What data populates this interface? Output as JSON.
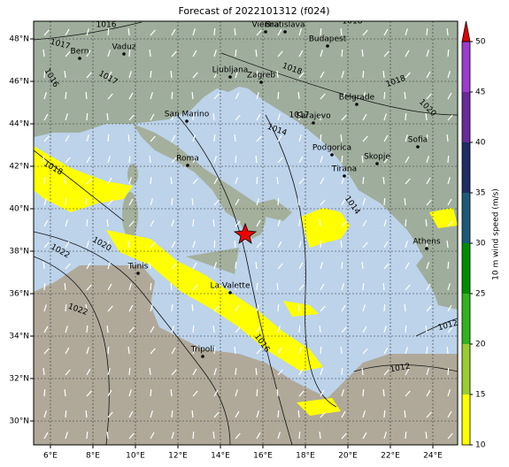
{
  "title": "Forecast of 2022101312 (f024)",
  "lon_ticks": [
    {
      "value": 6,
      "label": "6°E"
    },
    {
      "value": 8,
      "label": "8°E"
    },
    {
      "value": 10,
      "label": "10°E"
    },
    {
      "value": 12,
      "label": "12°E"
    },
    {
      "value": 14,
      "label": "14°E"
    },
    {
      "value": 16,
      "label": "16°E"
    },
    {
      "value": 18,
      "label": "18°E"
    },
    {
      "value": 20,
      "label": "20°E"
    },
    {
      "value": 22,
      "label": "22°E"
    },
    {
      "value": 24,
      "label": "24°E"
    }
  ],
  "lat_ticks": [
    {
      "value": 30,
      "label": "30°N"
    },
    {
      "value": 32,
      "label": "32°N"
    },
    {
      "value": 34,
      "label": "34°N"
    },
    {
      "value": 36,
      "label": "36°N"
    },
    {
      "value": 38,
      "label": "38°N"
    },
    {
      "value": 40,
      "label": "40°N"
    },
    {
      "value": 42,
      "label": "42°N"
    },
    {
      "value": 44,
      "label": "44°N"
    },
    {
      "value": 46,
      "label": "46°N"
    },
    {
      "value": 48,
      "label": "48°N"
    }
  ],
  "cities": [
    "Bern",
    "Vaduz",
    "Vienna",
    "Bratislava",
    "Budapest",
    "Ljubljana",
    "Zagreb",
    "San Marino",
    "Belgrade",
    "Sarajevo",
    "Podgorica",
    "Skopje",
    "Sofia",
    "Tirana",
    "Roma",
    "Athens",
    "Tunis",
    "La Valette",
    "Tripoli"
  ],
  "isobar_labels": [
    "1016",
    "1017",
    "1016",
    "1017",
    "1018",
    "1018",
    "1018",
    "1020",
    "1017",
    "1014",
    "1018",
    "1020",
    "1022",
    "1022",
    "1016",
    "1012",
    "1012",
    "1014"
  ],
  "colorbar": {
    "label": "10 m wind speed (m/s)",
    "lim": [
      10,
      50
    ],
    "ticks": [
      10,
      15,
      20,
      25,
      30,
      35,
      40,
      45,
      50
    ],
    "colors": [
      "#ffff00",
      "#9acd32",
      "#32b41e",
      "#008c00",
      "#1e5a78",
      "#1e2d64",
      "#6a2a9a",
      "#9b3ccc"
    ],
    "extend_color": "#e00000"
  }
}
